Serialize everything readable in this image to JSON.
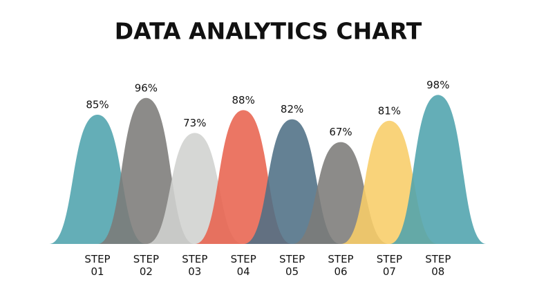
{
  "chart_data": {
    "type": "bell",
    "title": "DATA ANALYTICS CHART",
    "categories": [
      "STEP 01",
      "STEP 02",
      "STEP 03",
      "STEP 04",
      "STEP 05",
      "STEP 06",
      "STEP 07",
      "STEP 08"
    ],
    "values": [
      85,
      96,
      73,
      88,
      82,
      67,
      81,
      98
    ],
    "value_labels": [
      "85%",
      "96%",
      "73%",
      "88%",
      "82%",
      "67%",
      "81%",
      "98%"
    ],
    "colors": [
      "#4fa3ad",
      "#7c7b79",
      "#d0d1cf",
      "#e8634f",
      "#4f6f85",
      "#7c7b79",
      "#f8cd68",
      "#4fa3ad"
    ]
  }
}
